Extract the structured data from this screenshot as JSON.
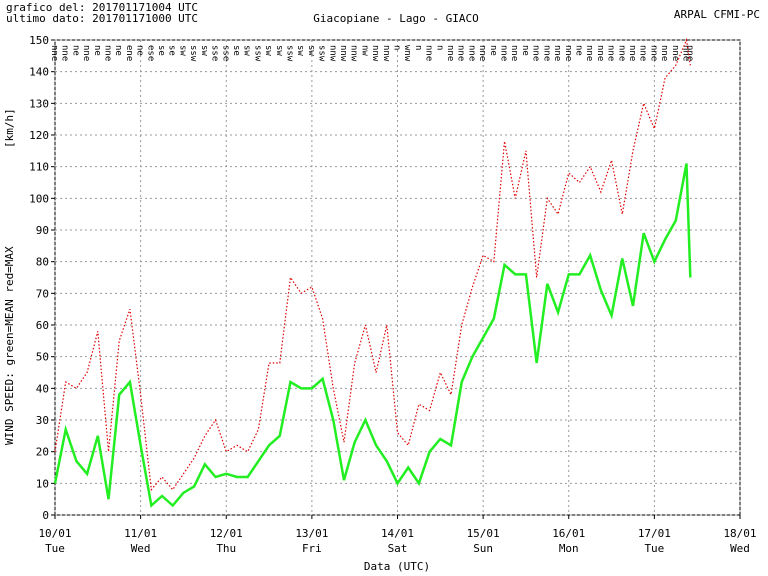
{
  "header": {
    "plot_time": "grafico del: 201701171004 UTC",
    "last_data": "ultimo dato: 201701171000 UTC",
    "source": "ARPAL CFMI-PC"
  },
  "chart_data": {
    "type": "line",
    "title": "Giacopiane - Lago - GIACO",
    "y_label": "WIND SPEED: green=MEAN  red=MAX",
    "y_unit": "[km/h]",
    "x_label": "Data (UTC)",
    "x": [
      0,
      0.125,
      0.25,
      0.375,
      0.5,
      0.625,
      0.75,
      0.875,
      1,
      1.125,
      1.25,
      1.375,
      1.5,
      1.625,
      1.75,
      1.875,
      2,
      2.125,
      2.25,
      2.375,
      2.5,
      2.625,
      2.75,
      2.875,
      3,
      3.125,
      3.25,
      3.375,
      3.5,
      3.625,
      3.75,
      3.875,
      4,
      4.125,
      4.25,
      4.375,
      4.5,
      4.625,
      4.75,
      4.875,
      5,
      5.125,
      5.25,
      5.375,
      5.5,
      5.625,
      5.75,
      5.875,
      6,
      6.125,
      6.25,
      6.375,
      6.5,
      6.625,
      6.75,
      6.875,
      7,
      7.125,
      7.25,
      7.375,
      7.42
    ],
    "series": [
      {
        "name": "MAX",
        "color": "#e00000",
        "dash": true,
        "values": [
          20,
          42,
          40,
          45,
          58,
          20,
          55,
          65,
          38,
          8,
          12,
          8,
          13,
          18,
          25,
          30,
          20,
          22,
          20,
          27,
          48,
          48,
          75,
          70,
          72,
          62,
          40,
          23,
          48,
          60,
          45,
          60,
          26,
          22,
          35,
          33,
          45,
          38,
          60,
          72,
          82,
          80,
          118,
          100,
          115,
          75,
          100,
          95,
          108,
          105,
          110,
          102,
          112,
          95,
          115,
          130,
          122,
          138,
          142,
          150,
          142
        ]
      },
      {
        "name": "MEAN",
        "color": "#22ee22",
        "dash": false,
        "values": [
          10,
          27,
          17,
          13,
          25,
          5,
          38,
          42,
          22,
          3,
          6,
          3,
          7,
          9,
          16,
          12,
          13,
          12,
          12,
          17,
          22,
          25,
          42,
          40,
          40,
          43,
          30,
          11,
          23,
          30,
          22,
          17,
          10,
          15,
          10,
          20,
          24,
          22,
          42,
          50,
          56,
          62,
          79,
          76,
          76,
          48,
          73,
          64,
          76,
          76,
          82,
          71,
          63,
          81,
          66,
          89,
          80,
          87,
          93,
          111,
          75
        ]
      }
    ],
    "directions": [
      "nne",
      "nne",
      "ne",
      "nne",
      "ne",
      "nne",
      "ne",
      "ene",
      "ne",
      "ese",
      "se",
      "se",
      "sw",
      "ssw",
      "sw",
      "sse",
      "sse",
      "se",
      "sw",
      "ssw",
      "sw",
      "sw",
      "ssw",
      "sw",
      "sw",
      "ssw",
      "nnw",
      "nnw",
      "nnw",
      "nw",
      "nnw",
      "nnw",
      "n",
      "wnw",
      "n",
      "nne",
      "n",
      "nne",
      "nne",
      "nne",
      "nne",
      "ne",
      "nne",
      "nne",
      "ne",
      "nne",
      "nne",
      "nne",
      "nne",
      "ne",
      "nne",
      "nne",
      "nne",
      "nne",
      "nne",
      "nne",
      "nne",
      "nne",
      "nne",
      "nne",
      "nne"
    ],
    "xlim": [
      0,
      8
    ],
    "xticks": [
      {
        "value": 0,
        "label": "10/01"
      },
      {
        "value": 1,
        "label": "11/01"
      },
      {
        "value": 2,
        "label": "12/01"
      },
      {
        "value": 3,
        "label": "13/01"
      },
      {
        "value": 4,
        "label": "14/01"
      },
      {
        "value": 5,
        "label": "15/01"
      },
      {
        "value": 6,
        "label": "16/01"
      },
      {
        "value": 7,
        "label": "17/01"
      },
      {
        "value": 8,
        "label": "18/01"
      }
    ],
    "xtick_days": [
      "Tue",
      "Wed",
      "Thu",
      "Fri",
      "Sat",
      "Sun",
      "Mon",
      "Tue",
      "Wed"
    ],
    "ylim": [
      0,
      150
    ],
    "yticks": [
      0,
      10,
      20,
      30,
      40,
      50,
      60,
      70,
      80,
      90,
      100,
      110,
      120,
      130,
      140,
      150
    ],
    "grid": true
  }
}
